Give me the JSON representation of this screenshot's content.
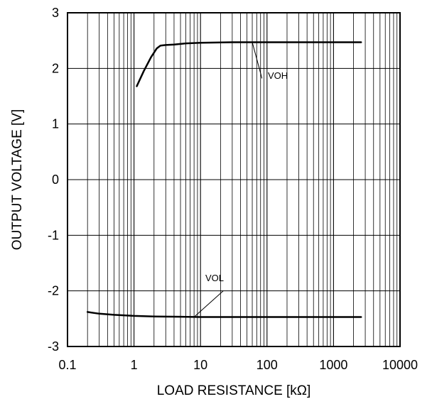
{
  "chart_data": {
    "type": "line",
    "title": "",
    "xlabel": "LOAD RESISTANCE [kΩ]",
    "ylabel": "OUTPUT VOLTAGE [V]",
    "xscale": "log",
    "xlim": [
      0.1,
      10000
    ],
    "ylim": [
      -3,
      3
    ],
    "grid": true,
    "x_ticks": [
      "0.1",
      "1",
      "10",
      "100",
      "1000",
      "10000"
    ],
    "y_ticks": [
      "-3",
      "-2",
      "-1",
      "0",
      "1",
      "2",
      "3"
    ],
    "series": [
      {
        "name": "VOH",
        "x": [
          1.1,
          1.4,
          1.8,
          2.2,
          2.5,
          3,
          4,
          6,
          10,
          30,
          100,
          300,
          1000,
          2600
        ],
        "y": [
          1.68,
          1.95,
          2.2,
          2.36,
          2.41,
          2.42,
          2.43,
          2.45,
          2.46,
          2.47,
          2.47,
          2.47,
          2.47,
          2.47
        ]
      },
      {
        "name": "VOL",
        "x": [
          0.2,
          0.3,
          0.5,
          1,
          2,
          5,
          10,
          100,
          1000,
          2600
        ],
        "y": [
          -2.38,
          -2.41,
          -2.43,
          -2.45,
          -2.46,
          -2.465,
          -2.47,
          -2.47,
          -2.47,
          -2.47
        ]
      }
    ],
    "annotations": [
      {
        "label": "VOH",
        "series": "VOH"
      },
      {
        "label": "VOL",
        "series": "VOL"
      }
    ]
  }
}
